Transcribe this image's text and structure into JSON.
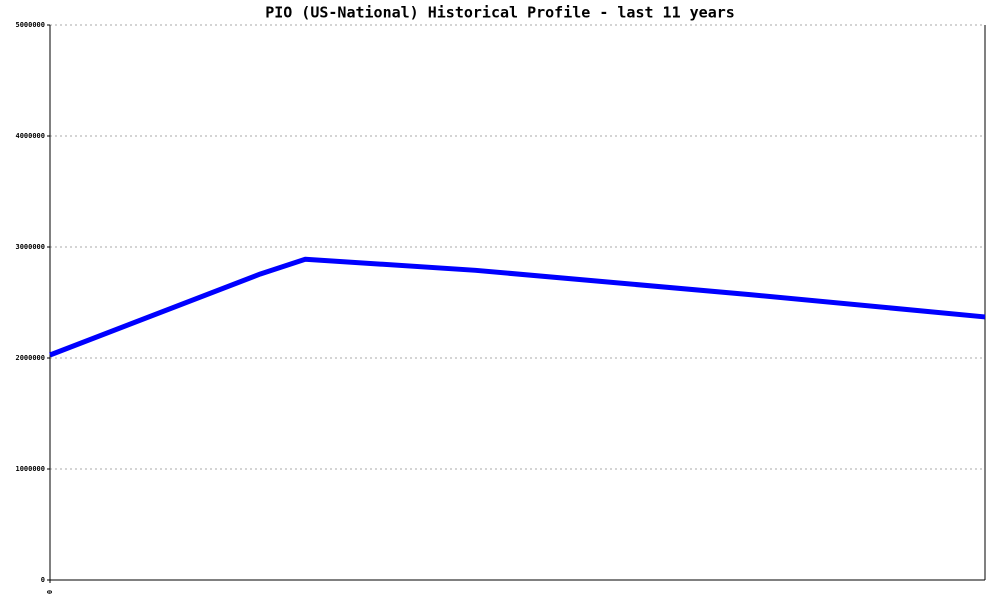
{
  "chart_data": {
    "type": "line",
    "title": "PIO (US-National) Historical Profile - last 11 years",
    "x": [
      0,
      2.25,
      2.73,
      4.55,
      7.5,
      10
    ],
    "series": [
      {
        "color": "#0000ff",
        "values": [
          2027000,
          2757000,
          2890000,
          2790000,
          2570000,
          2370000
        ]
      }
    ],
    "xlim": [
      0,
      10
    ],
    "xticks": [
      0
    ],
    "ylim": [
      0,
      5000000
    ],
    "yticks": [
      0,
      1000000,
      2000000,
      3000000,
      4000000,
      5000000
    ],
    "grid": true
  }
}
